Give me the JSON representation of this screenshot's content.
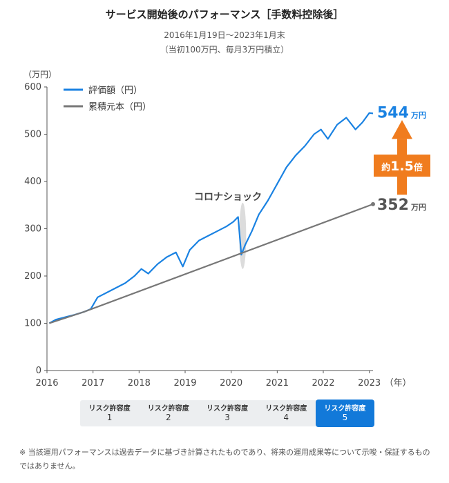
{
  "header": {
    "title": "サービス開始後のパフォーマンス［手数料控除後］",
    "period": "2016年1月19日〜2023年1月末",
    "condition": "（当初100万円、毎月3万円積立）"
  },
  "chart_data": {
    "type": "line",
    "ylabel": "（万円）",
    "xunit": "（年）",
    "ylim": [
      0,
      600
    ],
    "xlim": [
      2016,
      2023.08
    ],
    "yticks": [
      0,
      100,
      200,
      300,
      400,
      500,
      600
    ],
    "xticks": [
      "2016",
      "2017",
      "2018",
      "2019",
      "2020",
      "2021",
      "2022",
      "2023"
    ],
    "grid": false,
    "legend_position": "top-left",
    "series": [
      {
        "name": "評価額（円）",
        "color": "#1a82e2",
        "x": [
          2016.05,
          2016.2,
          2016.4,
          2016.6,
          2016.8,
          2016.95,
          2017.1,
          2017.3,
          2017.5,
          2017.7,
          2017.9,
          2018.05,
          2018.2,
          2018.4,
          2018.6,
          2018.8,
          2018.95,
          2019.1,
          2019.3,
          2019.5,
          2019.7,
          2019.9,
          2020.05,
          2020.15,
          2020.22,
          2020.3,
          2020.45,
          2020.6,
          2020.8,
          2021.0,
          2021.2,
          2021.4,
          2021.6,
          2021.8,
          2021.95,
          2022.1,
          2022.3,
          2022.5,
          2022.7,
          2022.85,
          2023.0,
          2023.08
        ],
        "values": [
          100,
          108,
          113,
          118,
          124,
          130,
          155,
          165,
          175,
          185,
          200,
          215,
          205,
          225,
          240,
          250,
          220,
          255,
          275,
          285,
          295,
          305,
          315,
          325,
          245,
          265,
          295,
          330,
          360,
          395,
          430,
          455,
          475,
          500,
          510,
          490,
          520,
          535,
          510,
          525,
          545,
          544
        ]
      },
      {
        "name": "累積元本（円）",
        "color": "#777777",
        "x": [
          2016.05,
          2016.8,
          2023.08
        ],
        "values": [
          100,
          124,
          352
        ]
      }
    ],
    "annotations": {
      "event_label": "コロナショック",
      "final_value_label": "544",
      "final_principal_label": "352",
      "unit": "万円",
      "ratio_prefix": "約",
      "ratio_value": "1.5",
      "ratio_suffix": "倍"
    }
  },
  "risk_selector": {
    "items": [
      {
        "label": "リスク許容度",
        "level": "1"
      },
      {
        "label": "リスク許容度",
        "level": "2"
      },
      {
        "label": "リスク許容度",
        "level": "3"
      },
      {
        "label": "リスク許容度",
        "level": "4"
      },
      {
        "label": "リスク許容度",
        "level": "5"
      }
    ],
    "active_level": "5"
  },
  "footnote": "※ 当該運用パフォーマンスは過去データに基づき計算されたものであり、将来の運用成果等について示唆・保証するものではありません。"
}
